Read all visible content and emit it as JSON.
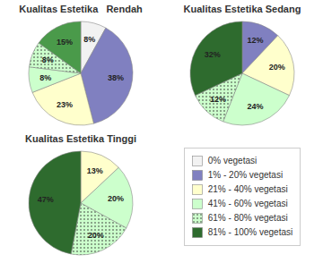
{
  "chart_data": {
    "type": "pie",
    "categories": [
      "0% vegetasi",
      "1% - 20% vegetasi",
      "21% - 40% vegetasi",
      "41% - 60% vegetasi",
      "61% - 80% vegetasi",
      "81% - 100% vegetasi"
    ],
    "colors": [
      "#f2f2f2",
      "#8080c0",
      "#ffffcc",
      "#ccffcc",
      "#ccffcc",
      "#2e6b2e"
    ],
    "legend": "right",
    "data_labels": true,
    "series": [
      {
        "name": "Kualitas Estetika   Rendah",
        "values": [
          8,
          38,
          23,
          8,
          8,
          15
        ],
        "value_labels": [
          "8%",
          "38%",
          "23%",
          "8%",
          "8%",
          "15%"
        ],
        "colors": [
          "#f2f2f2",
          "#8080c0",
          "#ffffcc",
          "#ccffcc",
          "#ccffcc",
          "#4a9a4a"
        ]
      },
      {
        "name": "Kualitas Estetika Sedang",
        "values": [
          null,
          12,
          20,
          24,
          12,
          32
        ],
        "value_labels": [
          null,
          "12%",
          "20%",
          "24%",
          "12%",
          "32%"
        ],
        "colors": [
          null,
          "#8080c0",
          "#ffffcc",
          "#ccffcc",
          "#ccffcc",
          "#2e6b2e"
        ]
      },
      {
        "name": "Kualitas Estetika Tinggi",
        "values": [
          null,
          null,
          13,
          20,
          20,
          47
        ],
        "value_labels": [
          null,
          null,
          "13%",
          "20%",
          "20%",
          "47%"
        ],
        "colors": [
          null,
          null,
          "#ffffcc",
          "#ccffcc",
          "#ccffcc",
          "#2e6b2e"
        ]
      }
    ]
  }
}
